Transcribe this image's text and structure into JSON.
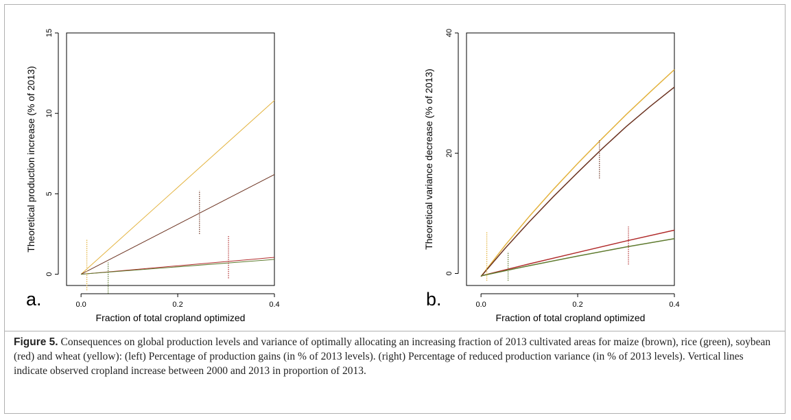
{
  "figure": {
    "caption_label": "Figure 5.",
    "caption_text": " Consequences on global production levels and variance of optimally allocating an increasing fraction of 2013 cultivated areas for maize (brown), rice (green), soybean (red) and wheat (yellow): (left) Percentage of production gains (in % of 2013 levels). (right) Percentage of reduced production variance (in % of 2013 levels). Vertical lines indicate observed cropland increase between 2000 and 2013 in proportion of 2013."
  },
  "colors": {
    "maize": "#6b3220",
    "rice": "#5e7a2e",
    "soybean": "#b02a2a",
    "wheat": "#e3b23c"
  },
  "chart_data": [
    {
      "type": "line",
      "panel_label": "a.",
      "xlabel": "Fraction of total cropland optimized",
      "ylabel": "Theoretical production increase  (% of 2013)",
      "xlim": [
        -0.03,
        0.4
      ],
      "ylim": [
        -0.7,
        15
      ],
      "xticks": [
        0.0,
        0.2,
        0.4
      ],
      "xtick_labels": [
        "0.0",
        "0.2",
        "0.4"
      ],
      "yticks": [
        0,
        5,
        10,
        15
      ],
      "ytick_labels": [
        "0",
        "5",
        "10",
        "15"
      ],
      "grid": false,
      "series": [
        {
          "color_key": "wheat",
          "x": [
            0.0,
            0.4
          ],
          "y": [
            0.0,
            10.8
          ]
        },
        {
          "color_key": "maize",
          "x": [
            0.0,
            0.4
          ],
          "y": [
            0.0,
            6.2
          ]
        },
        {
          "color_key": "soybean",
          "x": [
            0.0,
            0.4
          ],
          "y": [
            0.0,
            1.05
          ]
        },
        {
          "color_key": "rice",
          "x": [
            0.0,
            0.4
          ],
          "y": [
            0.0,
            0.92
          ]
        }
      ],
      "vlines": [
        {
          "color_key": "wheat",
          "x": 0.012,
          "y": [
            -1.0,
            2.2
          ]
        },
        {
          "color_key": "rice",
          "x": 0.056,
          "y": [
            -1.2,
            0.75
          ]
        },
        {
          "color_key": "maize",
          "x": 0.245,
          "y": [
            2.5,
            5.2
          ]
        },
        {
          "color_key": "soybean",
          "x": 0.305,
          "y": [
            -0.25,
            2.4
          ]
        }
      ]
    },
    {
      "type": "line",
      "panel_label": "b.",
      "xlabel": "Fraction of total cropland optimized",
      "ylabel": "Theoretical variance decrease  (% of 2013)",
      "xlim": [
        -0.03,
        0.4
      ],
      "ylim": [
        -2,
        40
      ],
      "xticks": [
        0.0,
        0.2,
        0.4
      ],
      "xtick_labels": [
        "0.0",
        "0.2",
        "0.4"
      ],
      "yticks": [
        0,
        20,
        40
      ],
      "ytick_labels": [
        "0",
        "20",
        "40"
      ],
      "grid": false,
      "series": [
        {
          "color_key": "wheat",
          "x": [
            0.0,
            0.05,
            0.1,
            0.15,
            0.2,
            0.25,
            0.3,
            0.35,
            0.4
          ],
          "y": [
            -0.5,
            4.7,
            9.5,
            14.0,
            18.3,
            22.4,
            26.4,
            30.2,
            33.9
          ]
        },
        {
          "color_key": "maize",
          "x": [
            0.0,
            0.05,
            0.1,
            0.15,
            0.2,
            0.25,
            0.3,
            0.35,
            0.4
          ],
          "y": [
            -0.5,
            4.2,
            8.6,
            12.8,
            16.8,
            20.7,
            24.4,
            27.8,
            31.0
          ]
        },
        {
          "color_key": "soybean",
          "x": [
            0.0,
            0.1,
            0.2,
            0.3,
            0.4
          ],
          "y": [
            -0.4,
            1.6,
            3.5,
            5.4,
            7.2
          ]
        },
        {
          "color_key": "rice",
          "x": [
            0.0,
            0.1,
            0.2,
            0.3,
            0.4
          ],
          "y": [
            -0.4,
            1.3,
            2.9,
            4.4,
            5.8
          ]
        }
      ],
      "vlines": [
        {
          "color_key": "wheat",
          "x": 0.012,
          "y": [
            -1.2,
            7.0
          ]
        },
        {
          "color_key": "rice",
          "x": 0.056,
          "y": [
            -1.2,
            3.6
          ]
        },
        {
          "color_key": "maize",
          "x": 0.245,
          "y": [
            15.8,
            22.2
          ]
        },
        {
          "color_key": "soybean",
          "x": 0.305,
          "y": [
            1.5,
            7.8
          ]
        }
      ]
    }
  ]
}
